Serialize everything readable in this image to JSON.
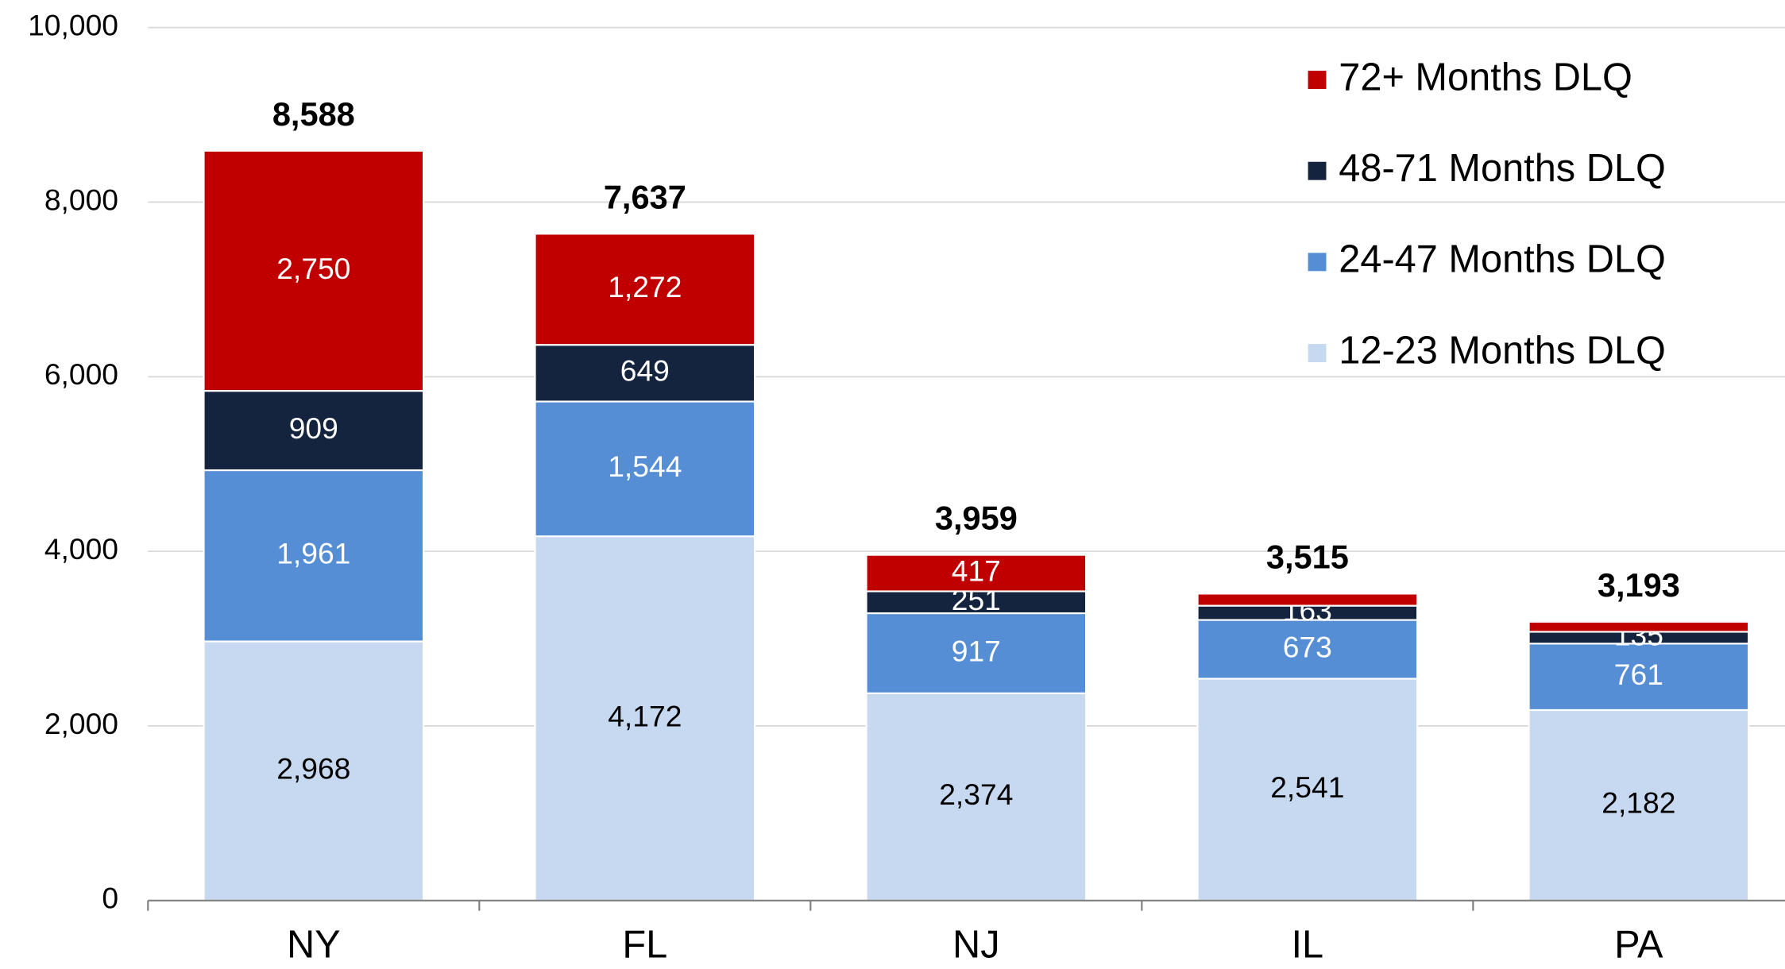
{
  "chart_data": {
    "type": "stacked_bar",
    "categories": [
      "NY",
      "FL",
      "NJ",
      "IL",
      "PA"
    ],
    "series": [
      {
        "name": "12-23 Months DLQ",
        "color": "#c6d9f1",
        "label_color": "#000000",
        "values": [
          2968,
          4172,
          2374,
          2541,
          2182
        ],
        "value_labels": [
          "2,968",
          "4,172",
          "2,374",
          "2,541",
          "2,182"
        ]
      },
      {
        "name": "24-47 Months DLQ",
        "color": "#558ed5",
        "label_color": "#ffffff",
        "values": [
          1961,
          1544,
          917,
          673,
          761
        ],
        "value_labels": [
          "1,961",
          "1,544",
          "917",
          "673",
          "761"
        ]
      },
      {
        "name": "48-71 Months DLQ",
        "color": "#14243f",
        "label_color": "#ffffff",
        "values": [
          909,
          649,
          251,
          163,
          135
        ],
        "value_labels": [
          "909",
          "649",
          "251",
          "163",
          "135"
        ]
      },
      {
        "name": "72+ Months DLQ",
        "color": "#c00000",
        "label_color": "#ffffff",
        "values": [
          2750,
          1272,
          417,
          138,
          115
        ],
        "value_labels": [
          "2,750",
          "1,272",
          "417",
          null,
          null
        ]
      }
    ],
    "totals": [
      8588,
      7637,
      3959,
      3515,
      3193
    ],
    "total_labels": [
      "8,588",
      "7,637",
      "3,959",
      "3,515",
      "3,193"
    ],
    "ylim": [
      0,
      10000
    ],
    "yticks": [
      0,
      {
        "value": 2000,
        "label": "2,000"
      },
      {
        "value": 4000,
        "label": "4,000"
      },
      {
        "value": 6000,
        "label": "6,000"
      },
      {
        "value": 8000,
        "label": "8,000"
      },
      {
        "value": 10000,
        "label": "10,000"
      }
    ],
    "grid": true,
    "legend": "upper right"
  }
}
